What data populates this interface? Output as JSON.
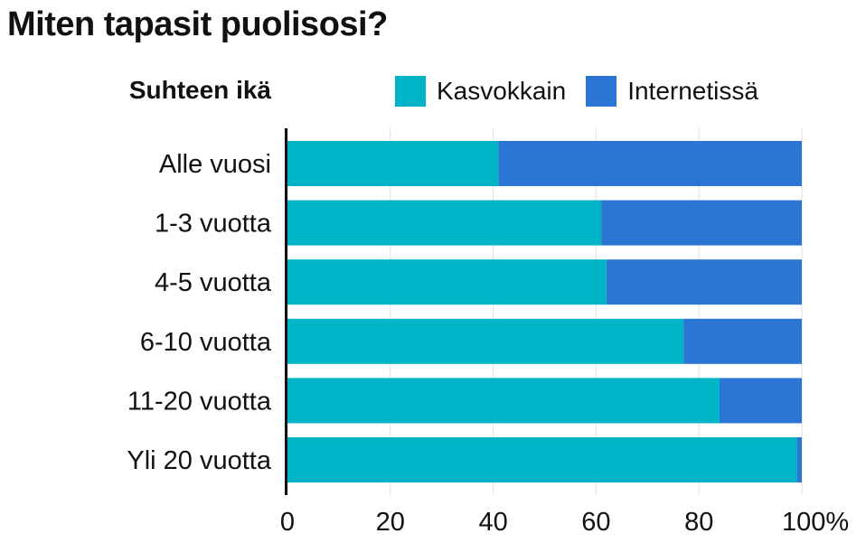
{
  "chart_data": {
    "type": "bar",
    "orientation": "horizontal",
    "stacked": true,
    "title": "Miten tapasit puolisosi?",
    "category_axis_title": "Suhteen ikä",
    "categories": [
      "Alle vuosi",
      "1-3 vuotta",
      "4-5 vuotta",
      "6-10 vuotta",
      "11-20 vuotta",
      "Yli 20 vuotta"
    ],
    "series": [
      {
        "name": "Kasvokkain",
        "color": "#00b4c8",
        "values": [
          41,
          61,
          62,
          77,
          84,
          99
        ]
      },
      {
        "name": "Internetissä",
        "color": "#2b76d4",
        "values": [
          59,
          39,
          38,
          23,
          16,
          1
        ]
      }
    ],
    "xlim": [
      0,
      100
    ],
    "xticks": [
      "0",
      "20",
      "40",
      "60",
      "80",
      "100%"
    ],
    "grid": true,
    "legend": "top"
  }
}
